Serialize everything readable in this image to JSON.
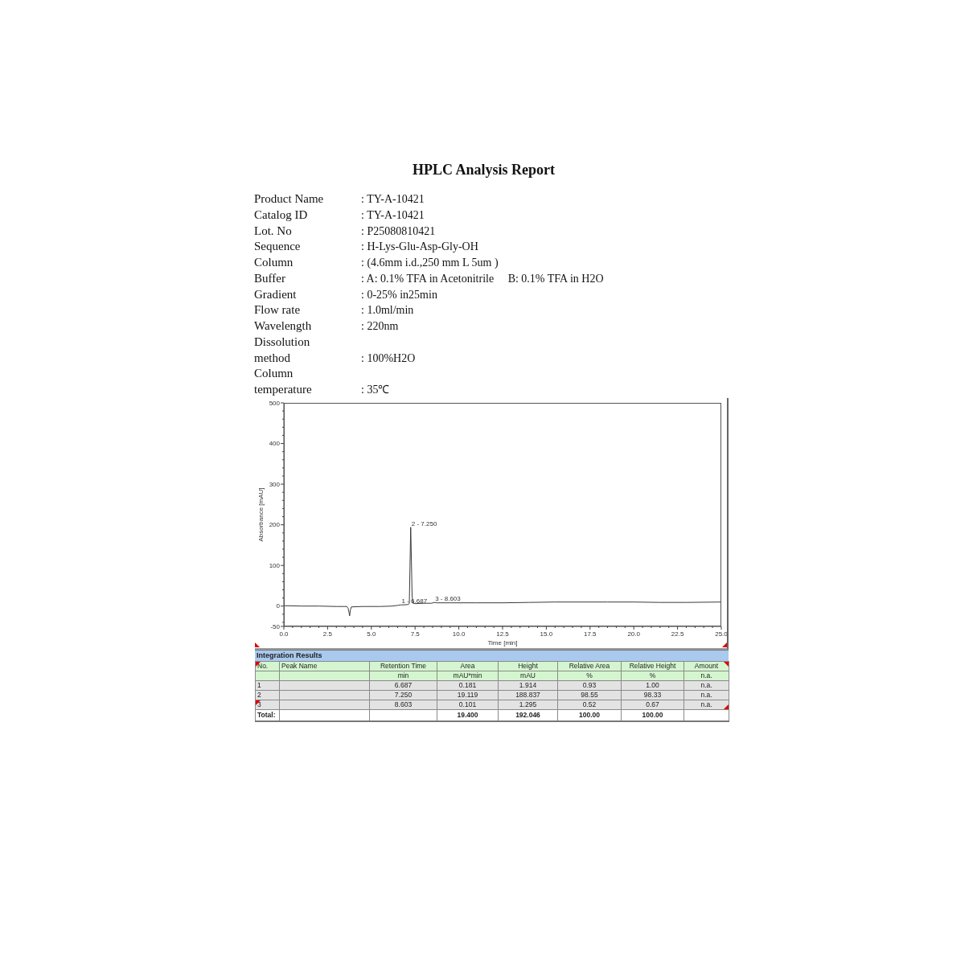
{
  "chart_data": [
    {
      "type": "other",
      "title": "HPLC Analysis Report",
      "annotations": [
        "Product Name",
        ": TY-A-10421",
        "Catalog ID",
        ": TY-A-10421",
        "Lot. No",
        ": P25080810421",
        "Sequence",
        ": H-Lys-Glu-Asp-Gly-OH",
        "Column",
        ": (4.6mm i.d.,250 mm L 5um )",
        "Buffer",
        ": A: 0.1% TFA in Acetonitrile     B: 0.1% TFA in H2O",
        "Gradient",
        ": 0-25% in25min",
        "Flow rate",
        ": 1.0ml/min",
        "Wavelength",
        ": 220nm",
        "Dissolution method",
        ": 100%H2O",
        "Column temperature",
        ": 35℃"
      ]
    },
    {
      "type": "line",
      "xlabel": "Time [min]",
      "ylabel": "Absorbance [mAU]",
      "color": "#3a3a3a",
      "marker": "none",
      "x": [
        0,
        1,
        2,
        3,
        3.6,
        3.68,
        3.72,
        3.76,
        3.8,
        3.86,
        4.5,
        5.5,
        6.2,
        6.55,
        6.69,
        6.85,
        7.1,
        7.17,
        7.21,
        7.25,
        7.29,
        7.33,
        7.38,
        7.5,
        8,
        8.45,
        8.6,
        8.75,
        9.5,
        11,
        12.5,
        14,
        15.5,
        17,
        18.5,
        20,
        21.5,
        23,
        25
      ],
      "values": [
        1,
        0,
        0,
        -1,
        -1,
        -6,
        -15,
        -24,
        -10,
        -2,
        -1,
        -1,
        0,
        2,
        3,
        3,
        4,
        6,
        100,
        194,
        110,
        25,
        7,
        6,
        7,
        7,
        9,
        8,
        8,
        8,
        8,
        9,
        10,
        10,
        10,
        10,
        9,
        9,
        10
      ],
      "xlim": [
        0,
        25
      ],
      "xticks": [
        {
          "value": 0,
          "label": "0.0"
        },
        {
          "value": 0.5,
          "label": null
        },
        {
          "value": 1,
          "label": null
        },
        {
          "value": 1.5,
          "label": null
        },
        {
          "value": 2,
          "label": null
        },
        {
          "value": 2.5,
          "label": "2.5"
        },
        {
          "value": 3,
          "label": null
        },
        {
          "value": 3.5,
          "label": null
        },
        {
          "value": 4,
          "label": null
        },
        {
          "value": 4.5,
          "label": null
        },
        {
          "value": 5,
          "label": "5.0"
        },
        {
          "value": 5.5,
          "label": null
        },
        {
          "value": 6,
          "label": null
        },
        {
          "value": 6.5,
          "label": null
        },
        {
          "value": 7,
          "label": null
        },
        {
          "value": 7.5,
          "label": "7.5"
        },
        {
          "value": 8,
          "label": null
        },
        {
          "value": 8.5,
          "label": null
        },
        {
          "value": 9,
          "label": null
        },
        {
          "value": 9.5,
          "label": null
        },
        {
          "value": 10,
          "label": "10.0"
        },
        {
          "value": 10.5,
          "label": null
        },
        {
          "value": 11,
          "label": null
        },
        {
          "value": 11.5,
          "label": null
        },
        {
          "value": 12,
          "label": null
        },
        {
          "value": 12.5,
          "label": "12.5"
        },
        {
          "value": 13,
          "label": null
        },
        {
          "value": 13.5,
          "label": null
        },
        {
          "value": 14,
          "label": null
        },
        {
          "value": 14.5,
          "label": null
        },
        {
          "value": 15,
          "label": "15.0"
        },
        {
          "value": 15.5,
          "label": null
        },
        {
          "value": 16,
          "label": null
        },
        {
          "value": 16.5,
          "label": null
        },
        {
          "value": 17,
          "label": null
        },
        {
          "value": 17.5,
          "label": "17.5"
        },
        {
          "value": 18,
          "label": null
        },
        {
          "value": 18.5,
          "label": null
        },
        {
          "value": 19,
          "label": null
        },
        {
          "value": 19.5,
          "label": null
        },
        {
          "value": 20,
          "label": "20.0"
        },
        {
          "value": 20.5,
          "label": null
        },
        {
          "value": 21,
          "label": null
        },
        {
          "value": 21.5,
          "label": null
        },
        {
          "value": 22,
          "label": null
        },
        {
          "value": 22.5,
          "label": "22.5"
        },
        {
          "value": 23,
          "label": null
        },
        {
          "value": 23.5,
          "label": null
        },
        {
          "value": 24,
          "label": null
        },
        {
          "value": 24.5,
          "label": null
        },
        {
          "value": 25,
          "label": "25.0"
        }
      ],
      "ylim": [
        -50,
        500
      ],
      "yticks": [
        -50,
        {
          "value": -40,
          "label": null
        },
        {
          "value": -20,
          "label": null
        },
        0,
        {
          "value": 20,
          "label": null
        },
        {
          "value": 40,
          "label": null
        },
        {
          "value": 60,
          "label": null
        },
        {
          "value": 80,
          "label": null
        },
        100,
        {
          "value": 120,
          "label": null
        },
        {
          "value": 140,
          "label": null
        },
        {
          "value": 160,
          "label": null
        },
        {
          "value": 180,
          "label": null
        },
        200,
        {
          "value": 220,
          "label": null
        },
        {
          "value": 240,
          "label": null
        },
        {
          "value": 260,
          "label": null
        },
        {
          "value": 280,
          "label": null
        },
        300,
        {
          "value": 320,
          "label": null
        },
        {
          "value": 340,
          "label": null
        },
        {
          "value": 360,
          "label": null
        },
        {
          "value": 380,
          "label": null
        },
        400,
        {
          "value": 420,
          "label": null
        },
        {
          "value": 440,
          "label": null
        },
        {
          "value": 460,
          "label": null
        },
        {
          "value": 480,
          "label": null
        },
        500
      ],
      "annotations": [
        {
          "text": "1 - 6.687",
          "x": 6.687,
          "y": 3
        },
        {
          "text": "2 - 7.250",
          "x": 7.25,
          "y": 194
        },
        {
          "text": "3 - 8.603",
          "x": 8.603,
          "y": 9
        }
      ]
    },
    {
      "type": "other",
      "title": "Integration Results",
      "categories": [
        "No.",
        "Peak Name",
        "Retention Time",
        "Area",
        "Height",
        "Relative Area",
        "Relative Height",
        "Amount"
      ],
      "cell_labels": [
        [
          null,
          null,
          "min",
          "mAU*min",
          "mAU",
          "%",
          "%",
          "n.a."
        ],
        [
          "1",
          null,
          "6.687",
          "0.181",
          "1.914",
          "0.93",
          "1.00",
          "n.a."
        ],
        [
          "2",
          null,
          "7.250",
          "19.119",
          "188.837",
          "98.55",
          "98.33",
          "n.a."
        ],
        [
          "3",
          null,
          "8.603",
          "0.101",
          "1.295",
          "0.52",
          "0.67",
          "n.a."
        ],
        [
          "Total:",
          null,
          null,
          "19.400",
          "192.046",
          "100.00",
          "100.00",
          null
        ]
      ]
    }
  ]
}
